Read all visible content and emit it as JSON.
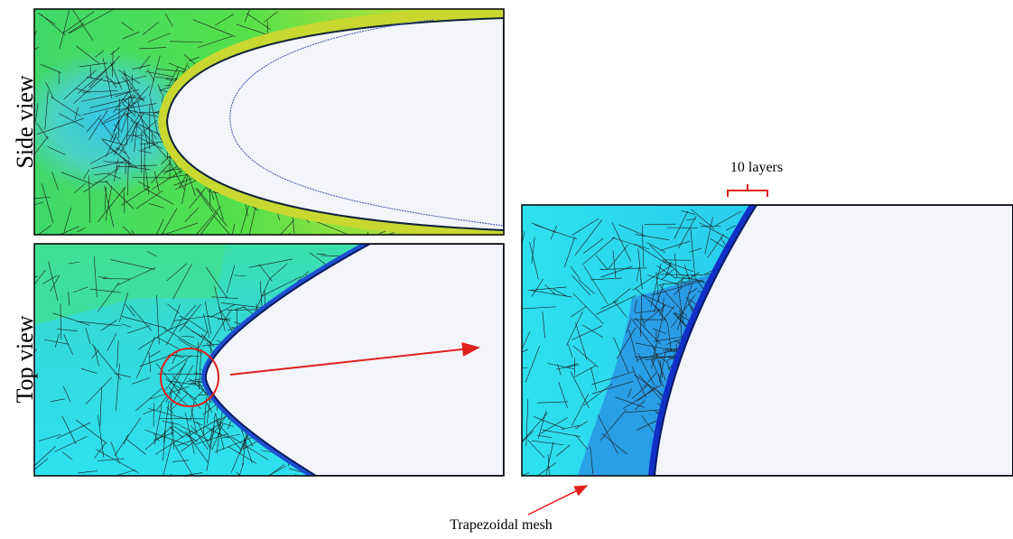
{
  "labels": {
    "side_view": "Side view",
    "top_view": "Top view"
  },
  "annotations": {
    "layers": "10 layers",
    "mesh": "Trapezoidal mesh"
  }
}
